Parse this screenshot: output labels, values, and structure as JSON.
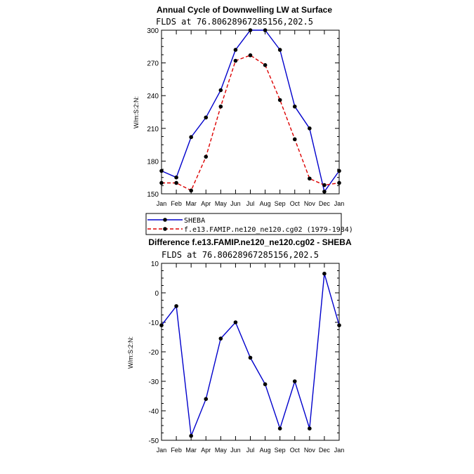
{
  "chart_data": [
    {
      "type": "line",
      "title": "Annual Cycle of Downwelling LW at Surface",
      "subtitle": "FLDS at 76.80628967285156,202.5",
      "ylabel": "W/m:S:2:N:",
      "xlabel": "",
      "categories": [
        "Jan",
        "Feb",
        "Mar",
        "Apr",
        "May",
        "Jun",
        "Jul",
        "Aug",
        "Sep",
        "Oct",
        "Nov",
        "Dec",
        "Jan"
      ],
      "ylim": [
        150,
        300
      ],
      "yticks": [
        150,
        180,
        210,
        240,
        270,
        300
      ],
      "series": [
        {
          "name": "SHEBA",
          "color": "#0000cc",
          "dash": "solid",
          "values": [
            171,
            165,
            202,
            220,
            245,
            282,
            300,
            300,
            282,
            230,
            210,
            152,
            171
          ]
        },
        {
          "name": "f.e13.FAMIP.ne120_ne120.cg02 (1979-1984)",
          "color": "#dd0000",
          "dash": "dashed",
          "values": [
            160,
            160,
            153,
            184,
            230,
            272,
            277,
            268,
            236,
            200,
            164,
            158,
            160
          ]
        }
      ],
      "legend": "below"
    },
    {
      "type": "line",
      "title": "Difference f.e13.FAMIP.ne120_ne120.cg02 - SHEBA",
      "subtitle": "FLDS at 76.80628967285156,202.5",
      "ylabel": "W/m:S:2:N:",
      "xlabel": "",
      "categories": [
        "Jan",
        "Feb",
        "Mar",
        "Apr",
        "May",
        "Jun",
        "Jul",
        "Aug",
        "Sep",
        "Oct",
        "Nov",
        "Dec",
        "Jan"
      ],
      "ylim": [
        -50,
        10
      ],
      "yticks": [
        -50,
        -40,
        -30,
        -20,
        -10,
        0,
        10
      ],
      "series": [
        {
          "name": "",
          "color": "#0000cc",
          "dash": "solid",
          "values": [
            -11,
            -4.5,
            -48.5,
            -36,
            -15.5,
            -10,
            -22,
            -31,
            -46,
            -30,
            -46,
            6.5,
            -11
          ]
        }
      ],
      "legend": "none"
    }
  ]
}
